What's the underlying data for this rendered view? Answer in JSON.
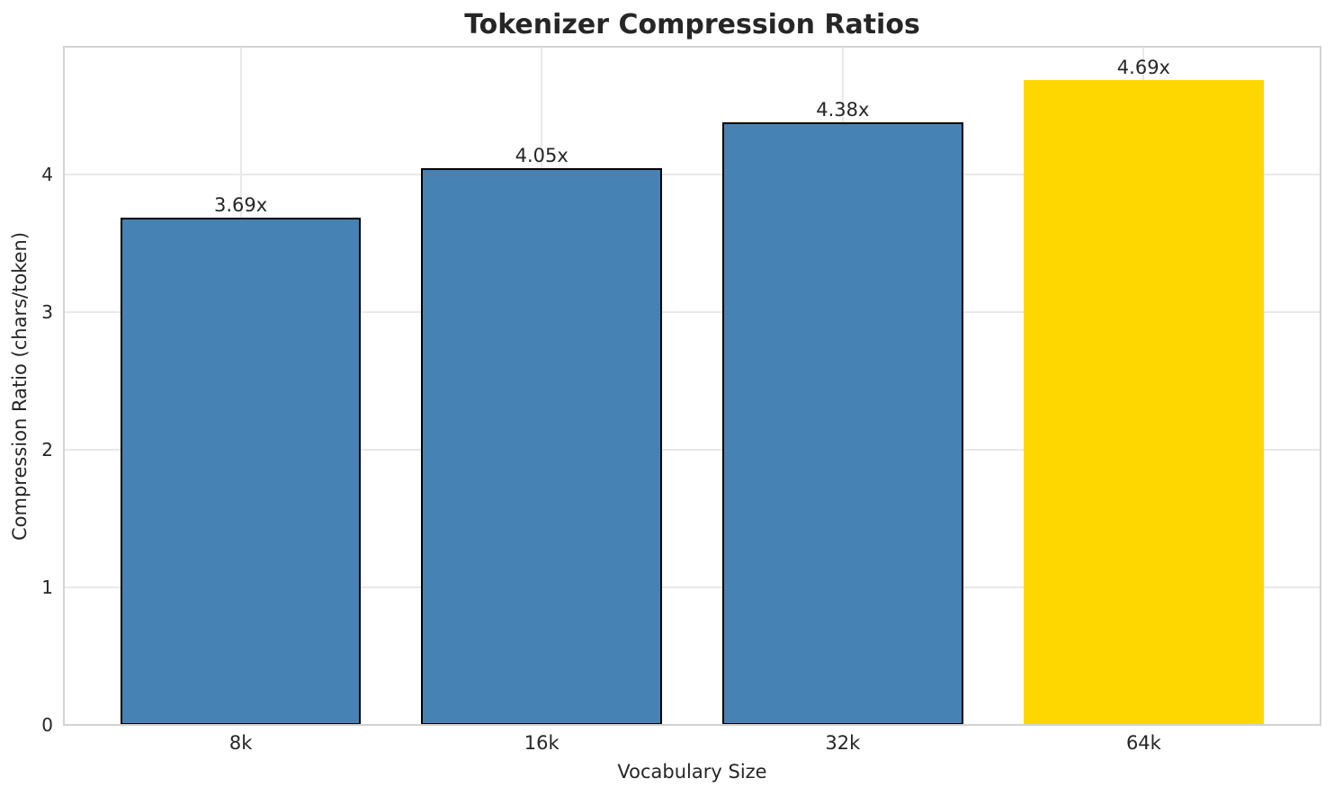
{
  "chart_data": {
    "type": "bar",
    "title": "Tokenizer Compression Ratios",
    "xlabel": "Vocabulary Size",
    "ylabel": "Compression Ratio (chars/token)",
    "categories": [
      "8k",
      "16k",
      "32k",
      "64k"
    ],
    "values": [
      3.69,
      4.05,
      4.38,
      4.69
    ],
    "value_labels": [
      "3.69x",
      "4.05x",
      "4.38x",
      "4.69x"
    ],
    "yticks": [
      0,
      1,
      2,
      3,
      4
    ],
    "ylim": [
      0,
      4.93
    ],
    "grid": true,
    "legend": false,
    "bar_colors": [
      "#4682B4",
      "#4682B4",
      "#4682B4",
      "#FFD700"
    ],
    "bar_edge_colors": [
      "#000000",
      "#000000",
      "#000000",
      "#FFD700"
    ],
    "highlighted_category": "64k"
  },
  "colors": {
    "background": "#FFFFFF",
    "spine": "#D3D3D3",
    "grid": "#E8E8E8",
    "text": "#262626",
    "bar_blue": "#4682B4",
    "bar_highlight_gold": "#FFD700",
    "bar_edge": "#000000"
  }
}
